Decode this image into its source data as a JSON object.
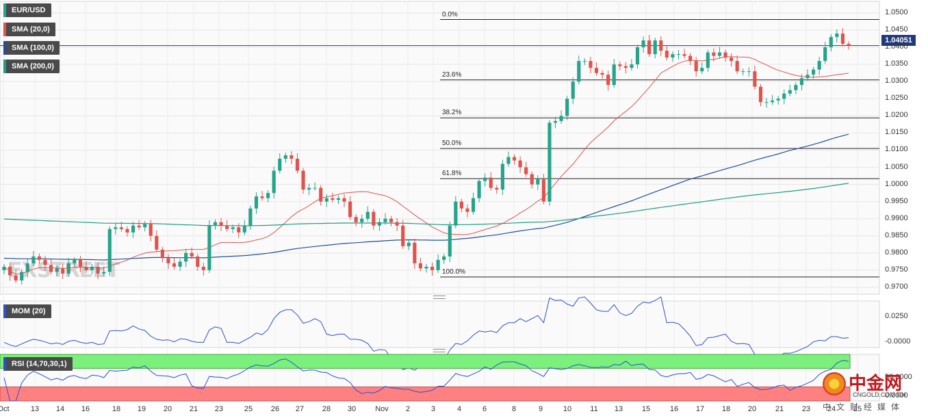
{
  "legend": {
    "pair": "EUR/USD",
    "sma20": "SMA (20,0)",
    "sma100": "SMA (100,0)",
    "sma200": "SMA (200,0)",
    "mom": "MOM (20)",
    "rsi": "RSI (14,70,30,1)"
  },
  "colors": {
    "bull": "#26a38a",
    "bear": "#e0524c",
    "sma20": "#e0524c",
    "sma100": "#1f4e9c",
    "sma200": "#1b9e84",
    "mom_line": "#2a4fd0",
    "rsi_line": "#2a4fd0",
    "overbought": "#7cf07c",
    "oversold": "#ff8080"
  },
  "current_price": "1.04051",
  "watermark": "FXSTREET",
  "logo": {
    "cn": "中金网",
    "en": "CNGOLD.COM.CN",
    "media": "中文财经媒体"
  },
  "chart_data": [
    {
      "type": "candlestick",
      "title": "EUR/USD",
      "yticks": [
        "1.0500",
        "1.0450",
        "1.0400",
        "1.0350",
        "1.0300",
        "1.0250",
        "1.0200",
        "1.0150",
        "1.0100",
        "1.0050",
        "1.0000",
        "0.9950",
        "0.9900",
        "0.9850",
        "0.9800",
        "0.9750",
        "0.9700"
      ],
      "ylim": [
        0.967,
        1.051
      ],
      "x_ticks": [
        "Oct",
        "13",
        "14",
        "16",
        "18",
        "19",
        "20",
        "21",
        "23",
        "25",
        "26",
        "27",
        "28",
        "30",
        "Nov",
        "2",
        "3",
        "4",
        "6",
        "8",
        "9",
        "10",
        "11",
        "13",
        "15",
        "16",
        "17",
        "18",
        "20",
        "21",
        "23",
        "24",
        "25"
      ],
      "fibonacci": [
        {
          "label": "0.0%",
          "price": 1.0481
        },
        {
          "label": "23.6%",
          "price": 1.0305
        },
        {
          "label": "38.2%",
          "price": 1.0194
        },
        {
          "label": "50.0%",
          "price": 1.0105
        },
        {
          "label": "61.8%",
          "price": 1.0017
        },
        {
          "label": "100.0%",
          "price": 0.973
        }
      ],
      "closes": [
        0.976,
        0.9735,
        0.972,
        0.9745,
        0.977,
        0.979,
        0.978,
        0.9765,
        0.9745,
        0.9755,
        0.974,
        0.977,
        0.978,
        0.976,
        0.975,
        0.976,
        0.974,
        0.9745,
        0.987,
        0.9875,
        0.987,
        0.986,
        0.988,
        0.9875,
        0.9885,
        0.985,
        0.981,
        0.9785,
        0.977,
        0.976,
        0.9775,
        0.98,
        0.979,
        0.976,
        0.975,
        0.988,
        0.989,
        0.988,
        0.987,
        0.9875,
        0.986,
        0.988,
        0.993,
        0.9965,
        0.996,
        0.9975,
        1.004,
        1.0075,
        1.0085,
        1.0075,
        1.004,
        0.9985,
        0.999,
        0.999,
        0.995,
        0.996,
        0.9955,
        0.996,
        0.995,
        0.9905,
        0.989,
        0.99,
        0.992,
        0.988,
        0.989,
        0.99,
        0.989,
        0.988,
        0.982,
        0.983,
        0.977,
        0.9755,
        0.976,
        0.975,
        0.978,
        0.979,
        0.988,
        0.995,
        0.993,
        0.992,
        0.996,
        1.001,
        1.002,
        0.999,
        0.9985,
        1.006,
        1.008,
        1.007,
        1.005,
        1.003,
        1.0,
        1.0015,
        0.995,
        1.018,
        1.0185,
        1.02,
        1.025,
        1.03,
        1.036,
        1.036,
        1.034,
        1.0325,
        1.032,
        1.029,
        1.035,
        1.0345,
        1.034,
        1.035,
        1.04,
        1.042,
        1.038,
        1.042,
        1.039,
        1.037,
        1.038,
        1.038,
        1.0375,
        1.036,
        1.033,
        1.034,
        1.0385,
        1.0375,
        1.0385,
        1.037,
        1.036,
        1.033,
        1.033,
        1.033,
        1.0285,
        1.024,
        1.024,
        1.0245,
        1.025,
        1.0265,
        1.0275,
        1.029,
        1.031,
        1.032,
        1.0335,
        1.036,
        1.04,
        1.043,
        1.044,
        1.041,
        1.0405
      ]
    },
    {
      "type": "line",
      "title": "MOM (20)",
      "yticks": [
        "0.0250",
        "-0.0000"
      ],
      "ylim": [
        -0.005,
        0.04
      ]
    },
    {
      "type": "line",
      "title": "RSI (14,70,30,1)",
      "yticks": [
        "50.0000",
        "0.0000"
      ]
    }
  ]
}
